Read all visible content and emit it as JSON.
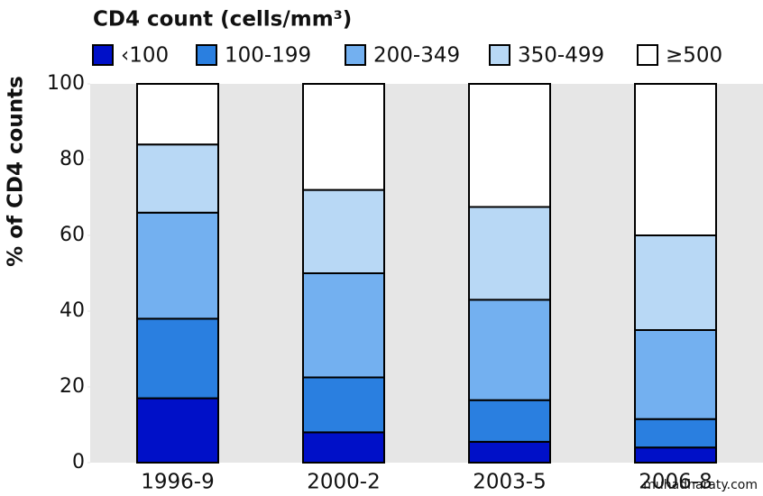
{
  "chart_data": {
    "type": "stacked_bar",
    "title": "CD4 count (cells/mm³)",
    "y_label": "% of CD4 counts",
    "categories": [
      "1996-9",
      "2000-2",
      "2003-5",
      "2006-8"
    ],
    "series": [
      {
        "name": "‹100",
        "color": "#0010c8",
        "values": [
          17,
          8,
          5.5,
          4
        ]
      },
      {
        "name": "100-199",
        "color": "#2a7fe0",
        "values": [
          21,
          14.5,
          11,
          7.5
        ]
      },
      {
        "name": "200-349",
        "color": "#73b0f0",
        "values": [
          28,
          27.5,
          26.5,
          23.5
        ]
      },
      {
        "name": "350-499",
        "color": "#b8d8f5",
        "values": [
          18,
          22,
          24.5,
          25
        ]
      },
      {
        "name": "≥500",
        "color": "#ffffff",
        "values": [
          16,
          28,
          32.5,
          40
        ]
      }
    ],
    "ylim": [
      0,
      100
    ],
    "yticks": [
      0,
      20,
      40,
      60,
      80,
      100
    ],
    "watermark": "muhadharaty.com"
  }
}
